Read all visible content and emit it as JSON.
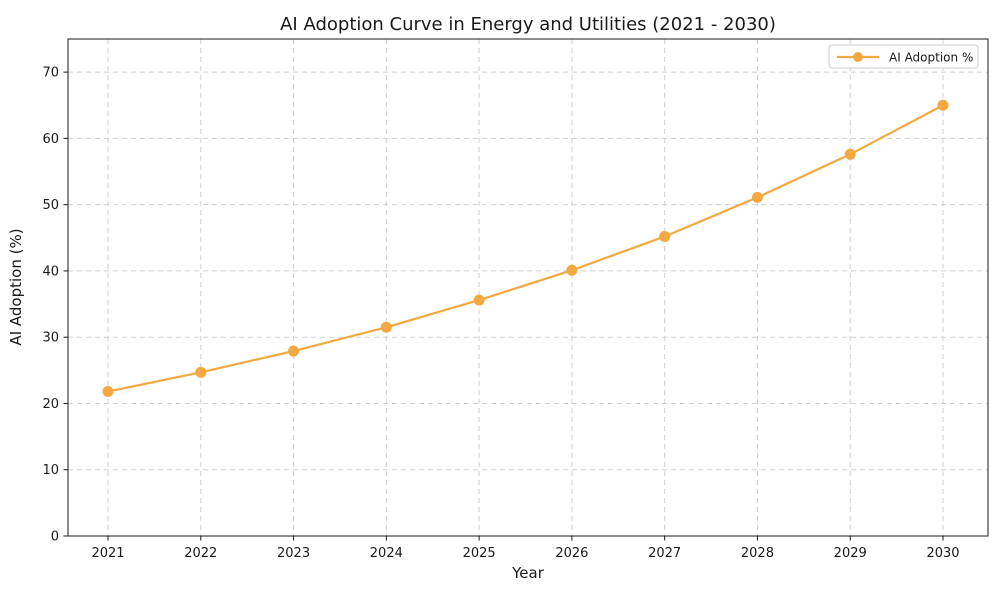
{
  "chart_data": {
    "type": "line",
    "title": "AI Adoption Curve in Energy and Utilities (2021 - 2030)",
    "xlabel": "Year",
    "ylabel": "AI Adoption (%)",
    "x": [
      2021,
      2022,
      2023,
      2024,
      2025,
      2026,
      2027,
      2028,
      2029,
      2030
    ],
    "series": [
      {
        "name": "AI Adoption %",
        "values": [
          21.8,
          24.7,
          27.9,
          31.5,
          35.6,
          40.1,
          45.2,
          51.1,
          57.6,
          65.0
        ],
        "color": "#F4A842",
        "marker": "circle"
      }
    ],
    "ylim": [
      0,
      75
    ],
    "yticks": [
      0,
      10,
      20,
      30,
      40,
      50,
      60,
      70
    ],
    "grid": true,
    "grid_style": "dashed",
    "legend_position": "upper right",
    "colors": {
      "line": "#F4A842",
      "grid": "#CFCFCF",
      "axis": "#1A1A1A",
      "text": "#1A1A1A",
      "background": "#FFFFFF"
    }
  }
}
